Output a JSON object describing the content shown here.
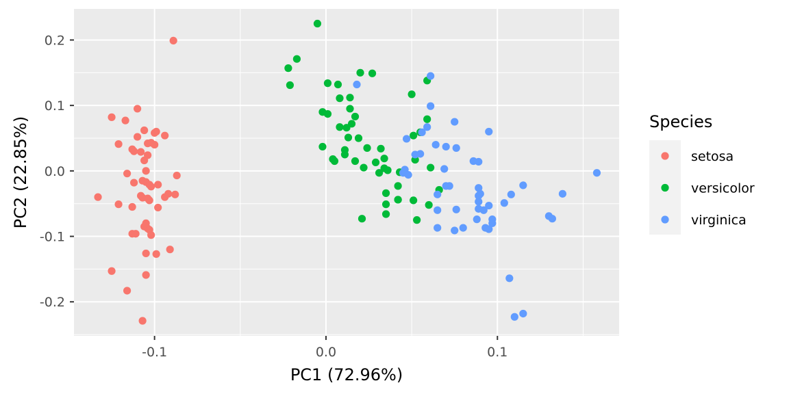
{
  "chart_data": {
    "type": "scatter",
    "xlabel": "PC1 (72.96%)",
    "ylabel": "PC2 (22.85%)",
    "xlim": [
      -0.147,
      0.171
    ],
    "ylim": [
      -0.252,
      0.2475
    ],
    "x_ticks": [
      {
        "value": -0.1,
        "label": "-0.1"
      },
      {
        "value": 0.0,
        "label": "0.0"
      },
      {
        "value": 0.1,
        "label": "0.1"
      }
    ],
    "y_ticks": [
      {
        "value": -0.2,
        "label": "-0.2"
      },
      {
        "value": -0.1,
        "label": "-0.1"
      },
      {
        "value": 0.0,
        "label": "0.0"
      },
      {
        "value": 0.1,
        "label": "0.1"
      },
      {
        "value": 0.2,
        "label": "0.2"
      }
    ],
    "grid": true,
    "panel_background": "#ebebeb",
    "legend": {
      "title": "Species",
      "position": "right",
      "entries": [
        {
          "label": "setosa",
          "color": "#F8766D"
        },
        {
          "label": "versicolor",
          "color": "#00BA38"
        },
        {
          "label": "virginica",
          "color": "#619CFF"
        }
      ]
    },
    "series": [
      {
        "name": "setosa",
        "color": "#F8766D",
        "points": [
          [
            -0.089,
            0.199
          ],
          [
            -0.11,
            0.095
          ],
          [
            -0.125,
            0.082
          ],
          [
            -0.117,
            0.077
          ],
          [
            -0.106,
            0.062
          ],
          [
            -0.099,
            0.06
          ],
          [
            -0.1,
            0.058
          ],
          [
            -0.094,
            0.054
          ],
          [
            -0.11,
            0.052
          ],
          [
            -0.104,
            0.042
          ],
          [
            -0.121,
            0.041
          ],
          [
            -0.102,
            0.043
          ],
          [
            -0.1,
            0.04
          ],
          [
            -0.113,
            0.033
          ],
          [
            -0.112,
            0.03
          ],
          [
            -0.108,
            0.029
          ],
          [
            -0.104,
            0.024
          ],
          [
            -0.106,
            0.016
          ],
          [
            -0.105,
            0.0
          ],
          [
            -0.116,
            -0.004
          ],
          [
            -0.087,
            -0.007
          ],
          [
            -0.107,
            -0.015
          ],
          [
            -0.105,
            -0.017
          ],
          [
            -0.112,
            -0.018
          ],
          [
            -0.103,
            -0.021
          ],
          [
            -0.098,
            -0.021
          ],
          [
            -0.102,
            -0.024
          ],
          [
            -0.092,
            -0.035
          ],
          [
            -0.088,
            -0.036
          ],
          [
            -0.133,
            -0.04
          ],
          [
            -0.108,
            -0.038
          ],
          [
            -0.107,
            -0.041
          ],
          [
            -0.094,
            -0.04
          ],
          [
            -0.104,
            -0.042
          ],
          [
            -0.103,
            -0.045
          ],
          [
            -0.121,
            -0.051
          ],
          [
            -0.113,
            -0.055
          ],
          [
            -0.098,
            -0.056
          ],
          [
            -0.105,
            -0.08
          ],
          [
            -0.106,
            -0.085
          ],
          [
            -0.104,
            -0.088
          ],
          [
            -0.103,
            -0.09
          ],
          [
            -0.113,
            -0.096
          ],
          [
            -0.111,
            -0.096
          ],
          [
            -0.102,
            -0.098
          ],
          [
            -0.091,
            -0.12
          ],
          [
            -0.105,
            -0.126
          ],
          [
            -0.099,
            -0.127
          ],
          [
            -0.125,
            -0.153
          ],
          [
            -0.105,
            -0.159
          ],
          [
            -0.116,
            -0.183
          ],
          [
            -0.107,
            -0.229
          ]
        ]
      },
      {
        "name": "versicolor",
        "color": "#00BA38",
        "points": [
          [
            -0.005,
            0.225
          ],
          [
            -0.017,
            0.171
          ],
          [
            -0.022,
            0.157
          ],
          [
            -0.021,
            0.131
          ],
          [
            0.02,
            0.15
          ],
          [
            0.027,
            0.149
          ],
          [
            0.059,
            0.138
          ],
          [
            0.001,
            0.134
          ],
          [
            0.007,
            0.132
          ],
          [
            0.05,
            0.117
          ],
          [
            0.014,
            0.112
          ],
          [
            0.008,
            0.111
          ],
          [
            0.014,
            0.095
          ],
          [
            -0.002,
            0.09
          ],
          [
            0.001,
            0.087
          ],
          [
            0.017,
            0.083
          ],
          [
            0.059,
            0.079
          ],
          [
            0.015,
            0.072
          ],
          [
            0.008,
            0.067
          ],
          [
            0.012,
            0.066
          ],
          [
            0.055,
            0.059
          ],
          [
            0.051,
            0.054
          ],
          [
            0.013,
            0.051
          ],
          [
            0.019,
            0.05
          ],
          [
            -0.002,
            0.037
          ],
          [
            0.024,
            0.035
          ],
          [
            0.032,
            0.034
          ],
          [
            0.011,
            0.032
          ],
          [
            0.011,
            0.025
          ],
          [
            0.034,
            0.019
          ],
          [
            0.052,
            0.017
          ],
          [
            0.004,
            0.018
          ],
          [
            0.005,
            0.015
          ],
          [
            0.017,
            0.015
          ],
          [
            0.029,
            0.013
          ],
          [
            0.022,
            0.005
          ],
          [
            0.061,
            0.005
          ],
          [
            0.034,
            0.004
          ],
          [
            0.031,
            -0.003
          ],
          [
            0.036,
            0.001
          ],
          [
            0.043,
            -0.002
          ],
          [
            0.042,
            -0.023
          ],
          [
            0.066,
            -0.029
          ],
          [
            0.035,
            -0.034
          ],
          [
            0.042,
            -0.044
          ],
          [
            0.051,
            -0.045
          ],
          [
            0.035,
            -0.051
          ],
          [
            0.06,
            -0.052
          ],
          [
            0.035,
            -0.066
          ],
          [
            0.021,
            -0.073
          ],
          [
            0.053,
            -0.075
          ],
          [
            0.042,
            -0.044
          ]
        ]
      },
      {
        "name": "virginica",
        "color": "#619CFF",
        "points": [
          [
            0.061,
            0.145
          ],
          [
            0.018,
            0.132
          ],
          [
            0.061,
            0.099
          ],
          [
            0.075,
            0.075
          ],
          [
            0.059,
            0.067
          ],
          [
            0.095,
            0.06
          ],
          [
            0.056,
            0.059
          ],
          [
            0.047,
            0.049
          ],
          [
            0.064,
            0.04
          ],
          [
            0.07,
            0.037
          ],
          [
            0.076,
            0.035
          ],
          [
            0.052,
            0.025
          ],
          [
            0.055,
            0.026
          ],
          [
            0.086,
            0.015
          ],
          [
            0.089,
            0.014
          ],
          [
            0.069,
            0.003
          ],
          [
            0.046,
            0.002
          ],
          [
            0.045,
            -0.003
          ],
          [
            0.048,
            -0.006
          ],
          [
            0.158,
            -0.003
          ],
          [
            0.07,
            -0.023
          ],
          [
            0.072,
            -0.023
          ],
          [
            0.089,
            -0.026
          ],
          [
            0.115,
            -0.022
          ],
          [
            0.065,
            -0.036
          ],
          [
            0.09,
            -0.035
          ],
          [
            0.089,
            -0.038
          ],
          [
            0.108,
            -0.036
          ],
          [
            0.138,
            -0.035
          ],
          [
            0.104,
            -0.049
          ],
          [
            0.089,
            -0.047
          ],
          [
            0.095,
            -0.053
          ],
          [
            0.089,
            -0.058
          ],
          [
            0.092,
            -0.06
          ],
          [
            0.065,
            -0.06
          ],
          [
            0.076,
            -0.059
          ],
          [
            0.13,
            -0.069
          ],
          [
            0.132,
            -0.073
          ],
          [
            0.097,
            -0.074
          ],
          [
            0.088,
            -0.074
          ],
          [
            0.097,
            -0.08
          ],
          [
            0.065,
            -0.087
          ],
          [
            0.08,
            -0.087
          ],
          [
            0.093,
            -0.087
          ],
          [
            0.095,
            -0.089
          ],
          [
            0.075,
            -0.091
          ],
          [
            0.107,
            -0.164
          ],
          [
            0.11,
            -0.223
          ],
          [
            0.115,
            -0.218
          ]
        ]
      }
    ]
  }
}
